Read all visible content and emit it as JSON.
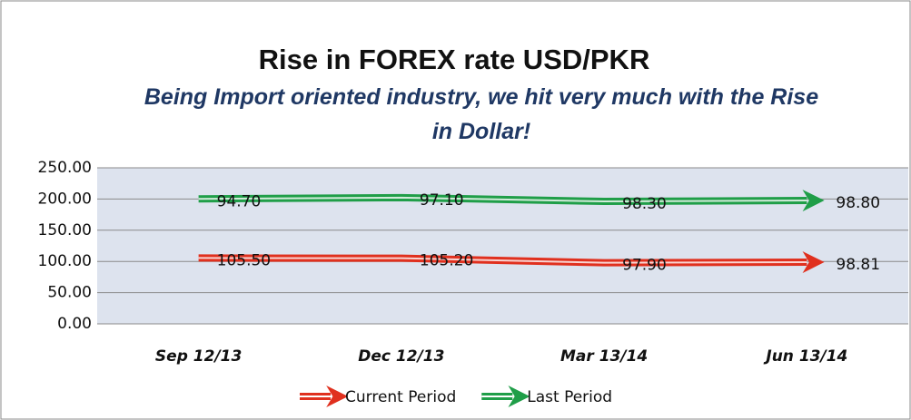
{
  "chart_data": {
    "type": "line",
    "stacked": true,
    "title": "Rise in FOREX rate USD/PKR",
    "subtitle": "Being Import oriented industry, we hit very much with the Rise in Dollar!",
    "categories": [
      "Sep 12/13",
      "Dec 12/13",
      "Mar 13/14",
      "Jun 13/14"
    ],
    "series": [
      {
        "name": "Current Period",
        "color": "#e0301e",
        "values": [
          105.5,
          105.2,
          97.9,
          98.81
        ],
        "value_labels": [
          "105.50",
          "105.20",
          "97.90",
          "98.81"
        ]
      },
      {
        "name": "Last Period",
        "color": "#1f9e48",
        "values": [
          94.7,
          97.1,
          98.3,
          98.8
        ],
        "value_labels": [
          "94.70",
          "97.10",
          "98.30",
          "98.80"
        ]
      }
    ],
    "ylim": [
      0,
      250
    ],
    "yticks": [
      {
        "value": 0,
        "label": "0.00"
      },
      {
        "value": 50,
        "label": "50.00"
      },
      {
        "value": 100,
        "label": "100.00"
      },
      {
        "value": 150,
        "label": "150.00"
      },
      {
        "value": 200,
        "label": "200.00"
      },
      {
        "value": 250,
        "label": "250.00"
      }
    ],
    "grid": true,
    "legend": "bottom"
  }
}
